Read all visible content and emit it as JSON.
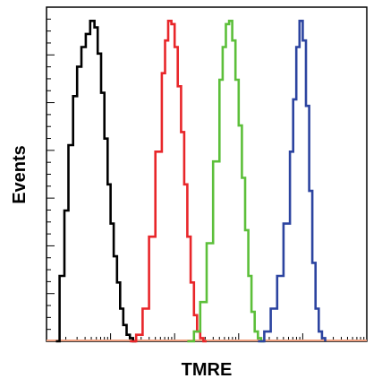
{
  "chart_data": {
    "type": "line",
    "title": "",
    "xlabel": "TMRE",
    "ylabel": "Events",
    "xscale": "log",
    "xlim": [
      1,
      100000
    ],
    "ylim": [
      0,
      100
    ],
    "grid": false,
    "legend": "none",
    "series": [
      {
        "color": "#000000",
        "x": [
          1.4,
          1.6,
          1.9,
          2.2,
          2.6,
          3.0,
          3.5,
          4.1,
          4.8,
          5.6,
          6.3,
          7.1,
          8.0,
          9.0,
          10.0,
          11.2,
          12.6,
          14.1,
          15.8,
          17.8,
          20.0,
          22.4,
          25.1
        ],
        "values": [
          0,
          20,
          40,
          60,
          75,
          84,
          90,
          94,
          98,
          96,
          88,
          76,
          62,
          48,
          36,
          26,
          18,
          10,
          5,
          2,
          1,
          0,
          0
        ]
      },
      {
        "color": "#e8262a",
        "x": [
          20.0,
          25.1,
          31.6,
          39.8,
          50.1,
          63.1,
          70.8,
          79.4,
          89.1,
          100,
          112,
          126,
          141,
          158,
          178,
          200,
          224,
          251,
          282,
          316
        ],
        "values": [
          0,
          2,
          10,
          32,
          58,
          82,
          92,
          98,
          97,
          90,
          78,
          64,
          48,
          32,
          18,
          8,
          3,
          1,
          0,
          0
        ]
      },
      {
        "color": "#5cbf3a",
        "x": [
          158,
          200,
          251,
          316,
          398,
          501,
          562,
          631,
          708,
          794,
          891,
          1000,
          1122,
          1259,
          1413,
          1585,
          1778,
          1995,
          2239,
          2512
        ],
        "values": [
          0,
          3,
          12,
          30,
          55,
          80,
          90,
          97,
          98,
          92,
          80,
          66,
          50,
          34,
          20,
          9,
          3,
          1,
          0,
          0
        ]
      },
      {
        "color": "#2c44a0",
        "x": [
          1995,
          2512,
          3162,
          3981,
          5012,
          6310,
          7079,
          7943,
          8913,
          10000,
          11220,
          12589,
          14125,
          15849,
          17783,
          19953,
          22387
        ],
        "values": [
          0,
          3,
          10,
          20,
          36,
          58,
          74,
          90,
          98,
          92,
          72,
          46,
          24,
          10,
          3,
          1,
          0
        ]
      }
    ]
  }
}
